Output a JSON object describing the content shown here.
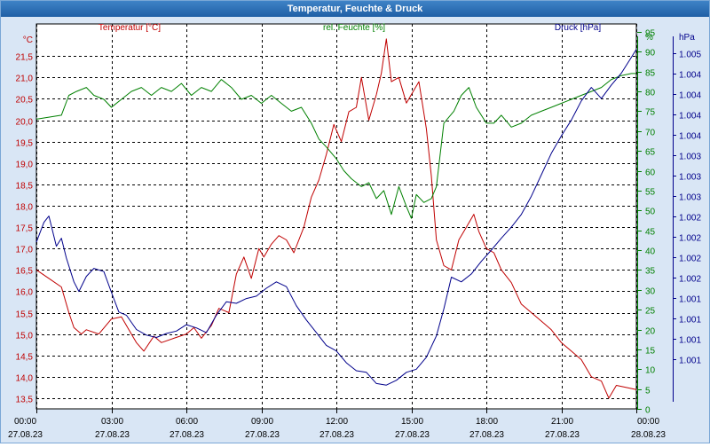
{
  "window": {
    "title": "Temperatur, Feuchte & Druck"
  },
  "colors": {
    "temperature": "#c00000",
    "humidity": "#008000",
    "pressure": "#00008b",
    "grid": "#000000",
    "background": "#ffffff",
    "frame": "#d9e6f5"
  },
  "chart_data": {
    "type": "line",
    "title": "Temperatur, Feuchte & Druck",
    "grid": true,
    "legend_placement": "top",
    "x": {
      "tick_labels": [
        [
          "00:00",
          "27.08.23"
        ],
        [
          "03:00",
          "27.08.23"
        ],
        [
          "06:00",
          "27.08.23"
        ],
        [
          "09:00",
          "27.08.23"
        ],
        [
          "12:00",
          "27.08.23"
        ],
        [
          "15:00",
          "27.08.23"
        ],
        [
          "18:00",
          "27.08.23"
        ],
        [
          "21:00",
          "27.08.23"
        ],
        [
          "00:00",
          "28.08.23"
        ]
      ],
      "range_hours": [
        0,
        24
      ]
    },
    "axes": {
      "temperature": {
        "unit": "°C",
        "ylim": [
          13.25,
          22.25
        ],
        "ticks": [
          13.5,
          14.0,
          14.5,
          15.0,
          15.5,
          16.0,
          16.5,
          17.0,
          17.5,
          18.0,
          18.5,
          19.0,
          19.5,
          20.0,
          20.5,
          21.0,
          21.5
        ],
        "tick_labels": [
          "13,5",
          "14,0",
          "14,5",
          "15,0",
          "15,5",
          "16,0",
          "16,5",
          "17,0",
          "17,5",
          "18,0",
          "18,5",
          "19,0",
          "19,5",
          "20,0",
          "20,5",
          "21,0",
          "21,5"
        ]
      },
      "humidity": {
        "unit": "%",
        "ylim": [
          0,
          97
        ],
        "ticks": [
          0,
          5,
          10,
          15,
          20,
          25,
          30,
          35,
          40,
          45,
          50,
          55,
          60,
          65,
          70,
          75,
          80,
          85,
          90,
          95
        ],
        "tick_labels": [
          "0",
          "5",
          "10",
          "15",
          "20",
          "25",
          "30",
          "35",
          "40",
          "45",
          "50",
          "55",
          "60",
          "65",
          "70",
          "75",
          "80",
          "85",
          "90",
          "95"
        ]
      },
      "pressure": {
        "unit": "hPa",
        "tick_labels": [
          "1.005",
          "1.004",
          "1.004",
          "1.004",
          "1.004",
          "1.003",
          "1.003",
          "1.003",
          "1.002",
          "1.002",
          "1.002",
          "1.002",
          "1.001",
          "1.001",
          "1.001",
          "1.001"
        ]
      }
    },
    "series": [
      {
        "name": "Temperatur [°C]",
        "axis": "temperature",
        "points": [
          [
            0,
            16.5
          ],
          [
            0.5,
            16.3
          ],
          [
            1,
            16.1
          ],
          [
            1.3,
            15.5
          ],
          [
            1.5,
            15.15
          ],
          [
            1.8,
            15.0
          ],
          [
            2,
            15.1
          ],
          [
            2.5,
            15.0
          ],
          [
            3,
            15.35
          ],
          [
            3.4,
            15.4
          ],
          [
            3.7,
            15.1
          ],
          [
            4,
            14.8
          ],
          [
            4.3,
            14.6
          ],
          [
            4.7,
            14.95
          ],
          [
            5,
            14.8
          ],
          [
            5.5,
            14.9
          ],
          [
            6,
            15.0
          ],
          [
            6.3,
            15.15
          ],
          [
            6.6,
            14.9
          ],
          [
            7,
            15.2
          ],
          [
            7.3,
            15.6
          ],
          [
            7.7,
            15.5
          ],
          [
            8,
            16.4
          ],
          [
            8.3,
            16.8
          ],
          [
            8.6,
            16.3
          ],
          [
            8.9,
            17.0
          ],
          [
            9.1,
            16.8
          ],
          [
            9.4,
            17.1
          ],
          [
            9.7,
            17.3
          ],
          [
            10,
            17.2
          ],
          [
            10.3,
            16.9
          ],
          [
            10.7,
            17.5
          ],
          [
            11,
            18.2
          ],
          [
            11.3,
            18.6
          ],
          [
            11.6,
            19.2
          ],
          [
            11.9,
            19.9
          ],
          [
            12.2,
            19.5
          ],
          [
            12.5,
            20.2
          ],
          [
            12.8,
            20.3
          ],
          [
            13,
            21.0
          ],
          [
            13.3,
            20.0
          ],
          [
            13.6,
            20.6
          ],
          [
            13.8,
            21.1
          ],
          [
            14,
            21.9
          ],
          [
            14.2,
            20.9
          ],
          [
            14.5,
            21.0
          ],
          [
            14.8,
            20.4
          ],
          [
            15,
            20.6
          ],
          [
            15.3,
            20.9
          ],
          [
            15.6,
            19.8
          ],
          [
            15.8,
            18.7
          ],
          [
            16,
            17.2
          ],
          [
            16.3,
            16.6
          ],
          [
            16.6,
            16.5
          ],
          [
            16.9,
            17.2
          ],
          [
            17.2,
            17.5
          ],
          [
            17.5,
            17.8
          ],
          [
            17.7,
            17.4
          ],
          [
            18,
            17.0
          ],
          [
            18.3,
            16.9
          ],
          [
            18.6,
            16.5
          ],
          [
            19,
            16.2
          ],
          [
            19.4,
            15.7
          ],
          [
            19.8,
            15.5
          ],
          [
            20.2,
            15.3
          ],
          [
            20.6,
            15.1
          ],
          [
            21,
            14.8
          ],
          [
            21.4,
            14.6
          ],
          [
            21.8,
            14.4
          ],
          [
            22.2,
            14.0
          ],
          [
            22.6,
            13.9
          ],
          [
            22.9,
            13.5
          ],
          [
            23.2,
            13.8
          ],
          [
            23.6,
            13.75
          ],
          [
            24,
            13.7
          ]
        ]
      },
      {
        "name": "rel. Feuchte [%]",
        "axis": "humidity",
        "points": [
          [
            0,
            73
          ],
          [
            0.5,
            73.5
          ],
          [
            1,
            74
          ],
          [
            1.3,
            79
          ],
          [
            1.6,
            80
          ],
          [
            2,
            81
          ],
          [
            2.3,
            79
          ],
          [
            2.7,
            78
          ],
          [
            3,
            76
          ],
          [
            3.4,
            78
          ],
          [
            3.8,
            80
          ],
          [
            4.2,
            81
          ],
          [
            4.6,
            79
          ],
          [
            5,
            81
          ],
          [
            5.4,
            80
          ],
          [
            5.8,
            82
          ],
          [
            6.2,
            79
          ],
          [
            6.6,
            81
          ],
          [
            7,
            80
          ],
          [
            7.4,
            83
          ],
          [
            7.8,
            81
          ],
          [
            8.2,
            78
          ],
          [
            8.6,
            79
          ],
          [
            9,
            77
          ],
          [
            9.4,
            79
          ],
          [
            9.8,
            77
          ],
          [
            10.2,
            75
          ],
          [
            10.6,
            76
          ],
          [
            11,
            72
          ],
          [
            11.3,
            68
          ],
          [
            11.6,
            66
          ],
          [
            12,
            63
          ],
          [
            12.3,
            60
          ],
          [
            12.6,
            58
          ],
          [
            13,
            56
          ],
          [
            13.3,
            57
          ],
          [
            13.6,
            53
          ],
          [
            13.9,
            55
          ],
          [
            14.2,
            49
          ],
          [
            14.5,
            56
          ],
          [
            14.8,
            51
          ],
          [
            15,
            48
          ],
          [
            15.2,
            54
          ],
          [
            15.5,
            52
          ],
          [
            15.8,
            53
          ],
          [
            16,
            56
          ],
          [
            16.3,
            72
          ],
          [
            16.7,
            75
          ],
          [
            17,
            79
          ],
          [
            17.3,
            81
          ],
          [
            17.6,
            76
          ],
          [
            18,
            72
          ],
          [
            18.3,
            72
          ],
          [
            18.6,
            74
          ],
          [
            19,
            71
          ],
          [
            19.4,
            72
          ],
          [
            19.8,
            74
          ],
          [
            20.2,
            75
          ],
          [
            20.6,
            76
          ],
          [
            21,
            77
          ],
          [
            21.4,
            78
          ],
          [
            21.8,
            79
          ],
          [
            22.2,
            80
          ],
          [
            22.6,
            81
          ],
          [
            23,
            83
          ],
          [
            23.4,
            84
          ],
          [
            23.8,
            84.5
          ],
          [
            24,
            84.5
          ]
        ]
      },
      {
        "name": "Druck [hPa]",
        "axis": "pressure",
        "note": "values in hPa read against the plot's pressure scale",
        "points": [
          [
            0,
            1002.5
          ],
          [
            0.3,
            1002.75
          ],
          [
            0.5,
            1002.83
          ],
          [
            0.8,
            1002.45
          ],
          [
            1,
            1002.55
          ],
          [
            1.2,
            1002.3
          ],
          [
            1.5,
            1002.0
          ],
          [
            1.7,
            1001.88
          ],
          [
            2,
            1002.07
          ],
          [
            2.3,
            1002.17
          ],
          [
            2.7,
            1002.13
          ],
          [
            3,
            1001.87
          ],
          [
            3.3,
            1001.62
          ],
          [
            3.6,
            1001.58
          ],
          [
            4,
            1001.4
          ],
          [
            4.4,
            1001.33
          ],
          [
            4.8,
            1001.3
          ],
          [
            5.2,
            1001.35
          ],
          [
            5.6,
            1001.38
          ],
          [
            6,
            1001.46
          ],
          [
            6.4,
            1001.42
          ],
          [
            6.8,
            1001.36
          ],
          [
            7.2,
            1001.58
          ],
          [
            7.6,
            1001.75
          ],
          [
            8,
            1001.73
          ],
          [
            8.4,
            1001.79
          ],
          [
            8.8,
            1001.82
          ],
          [
            9.2,
            1001.92
          ],
          [
            9.6,
            1002.0
          ],
          [
            10,
            1001.94
          ],
          [
            10.4,
            1001.7
          ],
          [
            10.8,
            1001.52
          ],
          [
            11.2,
            1001.36
          ],
          [
            11.6,
            1001.2
          ],
          [
            12,
            1001.13
          ],
          [
            12.4,
            1000.98
          ],
          [
            12.8,
            1000.88
          ],
          [
            13.2,
            1000.86
          ],
          [
            13.6,
            1000.72
          ],
          [
            14,
            1000.7
          ],
          [
            14.4,
            1000.76
          ],
          [
            14.8,
            1000.86
          ],
          [
            15.2,
            1000.9
          ],
          [
            15.6,
            1001.05
          ],
          [
            16,
            1001.32
          ],
          [
            16.3,
            1001.66
          ],
          [
            16.6,
            1002.06
          ],
          [
            17,
            1002.0
          ],
          [
            17.4,
            1002.1
          ],
          [
            17.8,
            1002.26
          ],
          [
            18.2,
            1002.4
          ],
          [
            18.6,
            1002.55
          ],
          [
            19,
            1002.69
          ],
          [
            19.4,
            1002.85
          ],
          [
            19.8,
            1003.08
          ],
          [
            20.2,
            1003.35
          ],
          [
            20.6,
            1003.62
          ],
          [
            21,
            1003.84
          ],
          [
            21.4,
            1004.04
          ],
          [
            21.8,
            1004.28
          ],
          [
            22.2,
            1004.45
          ],
          [
            22.6,
            1004.31
          ],
          [
            23,
            1004.48
          ],
          [
            23.4,
            1004.63
          ],
          [
            23.8,
            1004.83
          ],
          [
            24,
            1004.93
          ]
        ]
      }
    ]
  }
}
